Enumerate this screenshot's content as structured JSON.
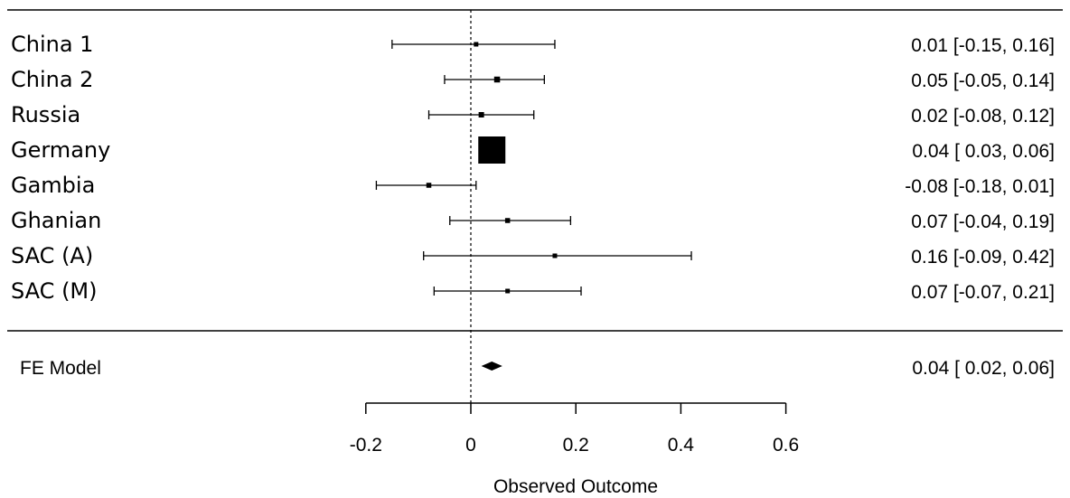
{
  "chart_data": {
    "type": "forest",
    "xlabel": "Observed Outcome",
    "xlim": [
      -0.2,
      0.6
    ],
    "xticks": [
      -0.2,
      0,
      0.2,
      0.4,
      0.6
    ],
    "xtick_labels": [
      "-0.2",
      "0",
      "0.2",
      "0.4",
      "0.6"
    ],
    "reference_line": 0,
    "studies": [
      {
        "label": "China 1",
        "estimate": 0.01,
        "lower": -0.15,
        "upper": 0.16,
        "text": "0.01 [-0.15, 0.16]",
        "weight": 1
      },
      {
        "label": "China 2",
        "estimate": 0.05,
        "lower": -0.05,
        "upper": 0.14,
        "text": "0.05 [-0.05, 0.14]",
        "weight": 1.3
      },
      {
        "label": "Russia",
        "estimate": 0.02,
        "lower": -0.08,
        "upper": 0.12,
        "text": "0.02 [-0.08, 0.12]",
        "weight": 1.2
      },
      {
        "label": "Germany",
        "estimate": 0.04,
        "lower": 0.03,
        "upper": 0.06,
        "text": "0.04 [ 0.03, 0.06]",
        "weight": 6
      },
      {
        "label": "Gambia",
        "estimate": -0.08,
        "lower": -0.18,
        "upper": 0.01,
        "text": "-0.08 [-0.18, 0.01]",
        "weight": 1.1
      },
      {
        "label": "Ghanian",
        "estimate": 0.07,
        "lower": -0.04,
        "upper": 0.19,
        "text": "0.07 [-0.04, 0.19]",
        "weight": 1.1
      },
      {
        "label": "SAC (A)",
        "estimate": 0.16,
        "lower": -0.09,
        "upper": 0.42,
        "text": "0.16 [-0.09, 0.42]",
        "weight": 1
      },
      {
        "label": "SAC (M)",
        "estimate": 0.07,
        "lower": -0.07,
        "upper": 0.21,
        "text": "0.07 [-0.07, 0.21]",
        "weight": 1
      }
    ],
    "summary": {
      "label": "FE Model",
      "estimate": 0.04,
      "lower": 0.02,
      "upper": 0.06,
      "text": "0.04 [ 0.02, 0.06]"
    }
  }
}
